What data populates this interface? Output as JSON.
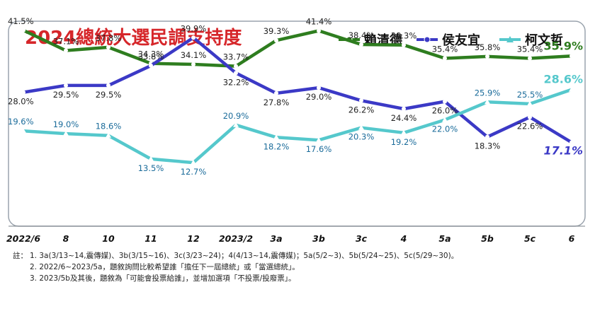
{
  "chart_data": {
    "type": "line",
    "title": "2024總統大選民調支持度",
    "categories": [
      "2022/6",
      "8",
      "10",
      "11",
      "12",
      "2023/2",
      "3a",
      "3b",
      "3c",
      "4",
      "5a",
      "5b",
      "5c",
      "6"
    ],
    "ylim": [
      10,
      45
    ],
    "legend_position": "top-right",
    "series": [
      {
        "name": "賴清德",
        "color": "#2e7d1f",
        "values": [
          41.5,
          37.1,
          37.8,
          34.3,
          34.1,
          33.7,
          39.3,
          41.4,
          38.4,
          38.3,
          35.4,
          35.8,
          35.4,
          35.9
        ]
      },
      {
        "name": "侯友宜",
        "color": "#3b39c6",
        "values": [
          28.0,
          29.5,
          29.5,
          33.8,
          39.9,
          32.2,
          27.8,
          29.0,
          26.2,
          24.4,
          26.0,
          18.3,
          22.6,
          17.1
        ]
      },
      {
        "name": "柯文哲",
        "color": "#55c8cc",
        "values": [
          19.6,
          19.0,
          18.6,
          13.5,
          12.7,
          20.9,
          18.2,
          17.6,
          20.3,
          19.2,
          22.0,
          25.9,
          25.5,
          28.6
        ]
      }
    ],
    "labels": [
      [
        "41.5%",
        "37.1%",
        "37.8%",
        "34.3%",
        "34.1%",
        "33.7%",
        "39.3%",
        "41.4%",
        "38.4%",
        "38.3%",
        "35.4%",
        "35.8%",
        "35.4%",
        "35.9%"
      ],
      [
        "28.0%",
        "29.5%",
        "29.5%",
        "33.8%",
        "39.9%",
        "32.2%",
        "27.8%",
        "29.0%",
        "26.2%",
        "24.4%",
        "26.0%",
        "18.3%",
        "22.6%",
        "17.1%"
      ],
      [
        "19.6%",
        "19.0%",
        "18.6%",
        "13.5%",
        "12.7%",
        "20.9%",
        "18.2%",
        "17.6%",
        "20.3%",
        "19.2%",
        "22.0%",
        "25.9%",
        "25.5%",
        "28.6%"
      ]
    ]
  },
  "notes": {
    "label": "註：",
    "line1": "1. 3a(3/13~14,震傳媒)、3b(3/15~16)、3c(3/23~24)；4(4/13~14,震傳媒)；5a(5/2~3)、5b(5/24~25)、5c(5/29~30)。",
    "line2": "2. 2022/6~2023/5a，題敘詢問比較希望誰「擔任下一屆總統」或「當選總統」。",
    "line3": "3. 2023/5b及其後，題敘為「可能會投票給誰」，並增加選項「不投票/投廢票」。"
  }
}
